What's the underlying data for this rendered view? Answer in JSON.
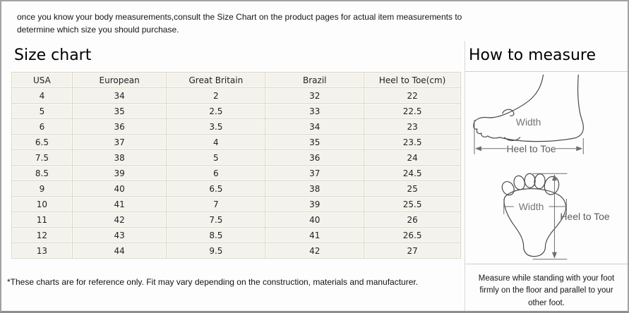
{
  "intro": "once you know your body measurements,consult the Size Chart on the product pages for actual item measurements to determine which size you should purchase.",
  "size_chart": {
    "title": "Size chart",
    "columns": [
      "USA",
      "European",
      "Great Britain",
      "Brazil",
      "Heel to Toe(cm)"
    ],
    "rows": [
      [
        "4",
        "34",
        "2",
        "32",
        "22"
      ],
      [
        "5",
        "35",
        "2.5",
        "33",
        "22.5"
      ],
      [
        "6",
        "36",
        "3.5",
        "34",
        "23"
      ],
      [
        "6.5",
        "37",
        "4",
        "35",
        "23.5"
      ],
      [
        "7.5",
        "38",
        "5",
        "36",
        "24"
      ],
      [
        "8.5",
        "39",
        "6",
        "37",
        "24.5"
      ],
      [
        "9",
        "40",
        "6.5",
        "38",
        "25"
      ],
      [
        "10",
        "41",
        "7",
        "39",
        "25.5"
      ],
      [
        "11",
        "42",
        "7.5",
        "40",
        "26"
      ],
      [
        "12",
        "43",
        "8.5",
        "41",
        "26.5"
      ],
      [
        "13",
        "44",
        "9.5",
        "42",
        "27"
      ]
    ],
    "footnote": "*These charts are for reference only. Fit may vary depending on the construction, materials and manufacturer."
  },
  "how_to_measure": {
    "title": "How to measure",
    "side_view": {
      "width_label": "Width",
      "length_label": "Heel to Toe"
    },
    "bottom_view": {
      "width_label": "Width",
      "length_label": "Heel to Toe"
    },
    "instruction": "Measure while standing with your foot firmly on the floor and parallel to your other foot."
  },
  "colors": {
    "frame_border": "#a2a2a2",
    "panel_divider": "#d8d8d8",
    "table_border": "#d9d6bf",
    "table_cell_bg": "#f3f2ec",
    "diagram_stroke": "#4a4a4a",
    "diagram_label": "#5c5c5c"
  }
}
